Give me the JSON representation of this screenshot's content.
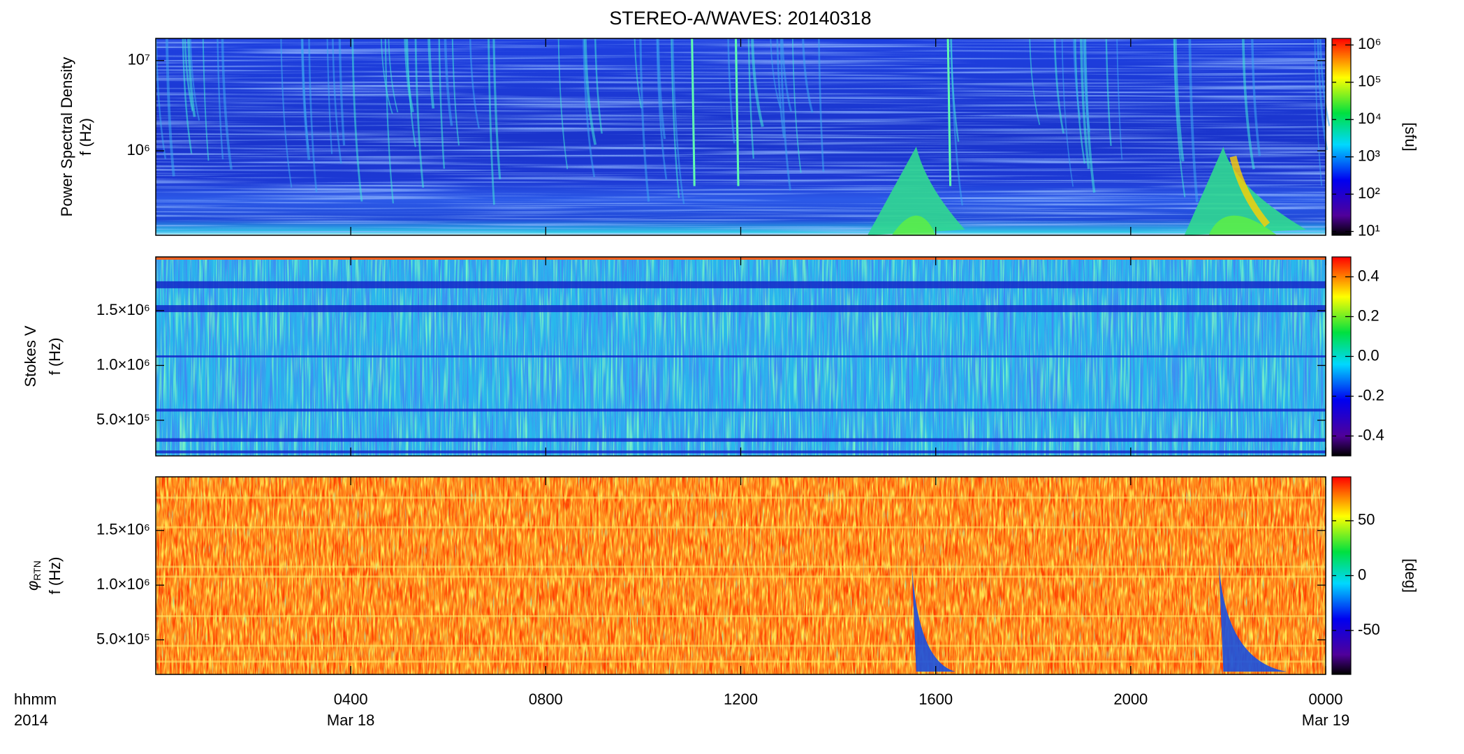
{
  "chart_data": [
    {
      "type": "heatmap",
      "title": "STEREO-A/WAVES: 20140318",
      "ylabel": [
        "Power Spectral Density",
        "f (Hz)"
      ],
      "yscale": "log",
      "ylim": [
        116000,
        17600000
      ],
      "yticks": [
        {
          "value": 1000000,
          "label": "10⁶"
        },
        {
          "value": 10000000,
          "label": "10⁷"
        }
      ],
      "colorbar": {
        "scale": "log",
        "clim": [
          7.9,
          1500000
        ],
        "label": "[sfu]",
        "ticks": [
          {
            "value": 10,
            "label": "10¹"
          },
          {
            "value": 100,
            "label": "10²"
          },
          {
            "value": 1000,
            "label": "10³"
          },
          {
            "value": 10000,
            "label": "10⁴"
          },
          {
            "value": 100000,
            "label": "10⁵"
          },
          {
            "value": 1000000,
            "label": "10⁶"
          }
        ]
      }
    },
    {
      "type": "heatmap",
      "ylabel": [
        "Stokes V",
        "f (Hz)"
      ],
      "yscale": "linear",
      "ylim": [
        175000,
        1990000
      ],
      "yticks": [
        {
          "value": 500000,
          "label": "5.0×10⁵"
        },
        {
          "value": 1000000,
          "label": "1.0×10⁶"
        },
        {
          "value": 1500000,
          "label": "1.5×10⁶"
        }
      ],
      "colorbar": {
        "scale": "linear",
        "clim": [
          -0.5,
          0.5
        ],
        "ticks": [
          -0.4,
          -0.2,
          {
            "value": 0,
            "label": "0.0"
          },
          0.2,
          0.4
        ]
      }
    },
    {
      "type": "heatmap",
      "ylabel_symbol": "φ",
      "ylabel_subscript": "RTN",
      "ylabel": [
        "f (Hz)"
      ],
      "yscale": "linear",
      "ylim": [
        184000,
        1990000
      ],
      "yticks": [
        {
          "value": 500000,
          "label": "5.0×10⁵"
        },
        {
          "value": 1000000,
          "label": "1.0×10⁶"
        },
        {
          "value": 1500000,
          "label": "1.5×10⁶"
        }
      ],
      "colorbar": {
        "scale": "linear",
        "clim": [
          -90,
          90
        ],
        "label": "[deg]",
        "ticks": [
          -50,
          0,
          50
        ]
      },
      "xlim": [
        0,
        24
      ],
      "xticks": [
        {
          "value": 4,
          "label": "0400"
        },
        {
          "value": 8,
          "label": "0800"
        },
        {
          "value": 12,
          "label": "1200"
        },
        {
          "value": 16,
          "label": "1600"
        },
        {
          "value": 20,
          "label": "2000"
        },
        {
          "value": 24,
          "label": "0000"
        }
      ],
      "xtick_dates": [
        {
          "value": 4,
          "label": "Mar 18"
        },
        {
          "value": 24,
          "label": "Mar 19"
        }
      ],
      "xlabel": [
        "hhmm",
        "2014"
      ]
    }
  ]
}
